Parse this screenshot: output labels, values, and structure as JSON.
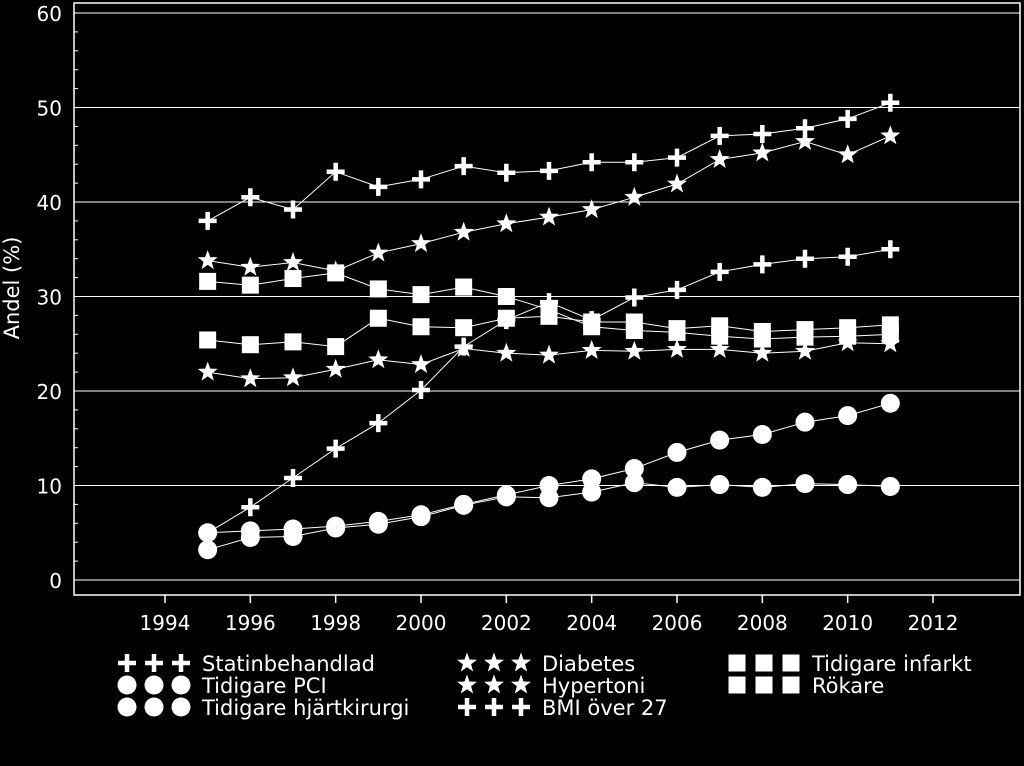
{
  "chart_data": {
    "type": "line",
    "ylabel": "Andel (%)",
    "xlabel": "",
    "xlim": [
      1992,
      2014
    ],
    "ylim": [
      0,
      60
    ],
    "xticks": [
      "1994",
      "1996",
      "1998",
      "2000",
      "2002",
      "2004",
      "2006",
      "2008",
      "2010",
      "2012"
    ],
    "yticks": [
      "0",
      "10",
      "20",
      "30",
      "40",
      "50",
      "60"
    ],
    "grid": "horizontal",
    "legend_position": "bottom",
    "x": [
      1995,
      1996,
      1997,
      1998,
      1999,
      2000,
      2001,
      2002,
      2003,
      2004,
      2005,
      2006,
      2007,
      2008,
      2009,
      2010,
      2011
    ],
    "series": [
      {
        "name": "Statinbehandlad",
        "marker": "plus",
        "values": [
          38,
          40.5,
          39.2,
          43.2,
          41.6,
          42.4,
          43.8,
          43.1,
          43.3,
          44.2,
          44.2,
          44.7,
          47,
          47.2,
          47.8,
          48.8,
          50.5
        ]
      },
      {
        "name": "Tidigare PCI",
        "marker": "circle",
        "values": [
          3.2,
          4.5,
          4.6,
          5.5,
          5.9,
          6.7,
          7.9,
          8.8,
          8.7,
          9.3,
          10.3,
          9.8,
          10.1,
          9.8,
          10.2,
          10.1,
          9.9
        ]
      },
      {
        "name": "Tidigare hjärtkirurgi",
        "marker": "circle",
        "values": [
          5,
          5.2,
          5.4,
          5.7,
          6.2,
          6.9,
          8,
          9,
          10,
          10.7,
          11.8,
          13.5,
          14.8,
          15.4,
          16.7,
          17.4,
          18.7
        ]
      },
      {
        "name": "Diabetes",
        "marker": "star",
        "values": [
          22,
          21.3,
          21.4,
          22.3,
          23.3,
          22.8,
          24.5,
          24,
          23.8,
          24.3,
          24.2,
          24.4,
          24.4,
          24,
          24.2,
          25.1,
          25
        ]
      },
      {
        "name": "Hypertoni",
        "marker": "star",
        "values": [
          33.8,
          33.1,
          33.6,
          32.7,
          34.6,
          35.6,
          36.8,
          37.7,
          38.4,
          39.2,
          40.5,
          41.9,
          44.5,
          45.2,
          46.4,
          45,
          47
        ]
      },
      {
        "name": "BMI över 27",
        "marker": "plus",
        "values": [
          5,
          7.7,
          10.8,
          13.9,
          16.6,
          20.1,
          24.7,
          27.5,
          29.4,
          27.5,
          29.9,
          30.7,
          32.6,
          33.4,
          34,
          34.2,
          35
        ]
      },
      {
        "name": "Tidigare infarkt",
        "marker": "square",
        "values": [
          31.6,
          31.2,
          31.9,
          32.5,
          30.8,
          30.2,
          31,
          30,
          28.6,
          26.8,
          26.4,
          26.2,
          25.8,
          25.5,
          25.7,
          25.8,
          26
        ]
      },
      {
        "name": "Rökare",
        "marker": "square",
        "values": [
          25.4,
          24.9,
          25.2,
          24.7,
          27.7,
          26.8,
          26.7,
          27.7,
          27.9,
          27.3,
          27.3,
          26.6,
          26.9,
          26.3,
          26.5,
          26.7,
          27
        ]
      }
    ],
    "legend_columns": [
      [
        "Statinbehandlad",
        "Tidigare PCI",
        "Tidigare hjärtkirurgi"
      ],
      [
        "Diabetes",
        "Hypertoni",
        "BMI över 27"
      ],
      [
        "Tidigare infarkt",
        "Rökare"
      ]
    ]
  }
}
